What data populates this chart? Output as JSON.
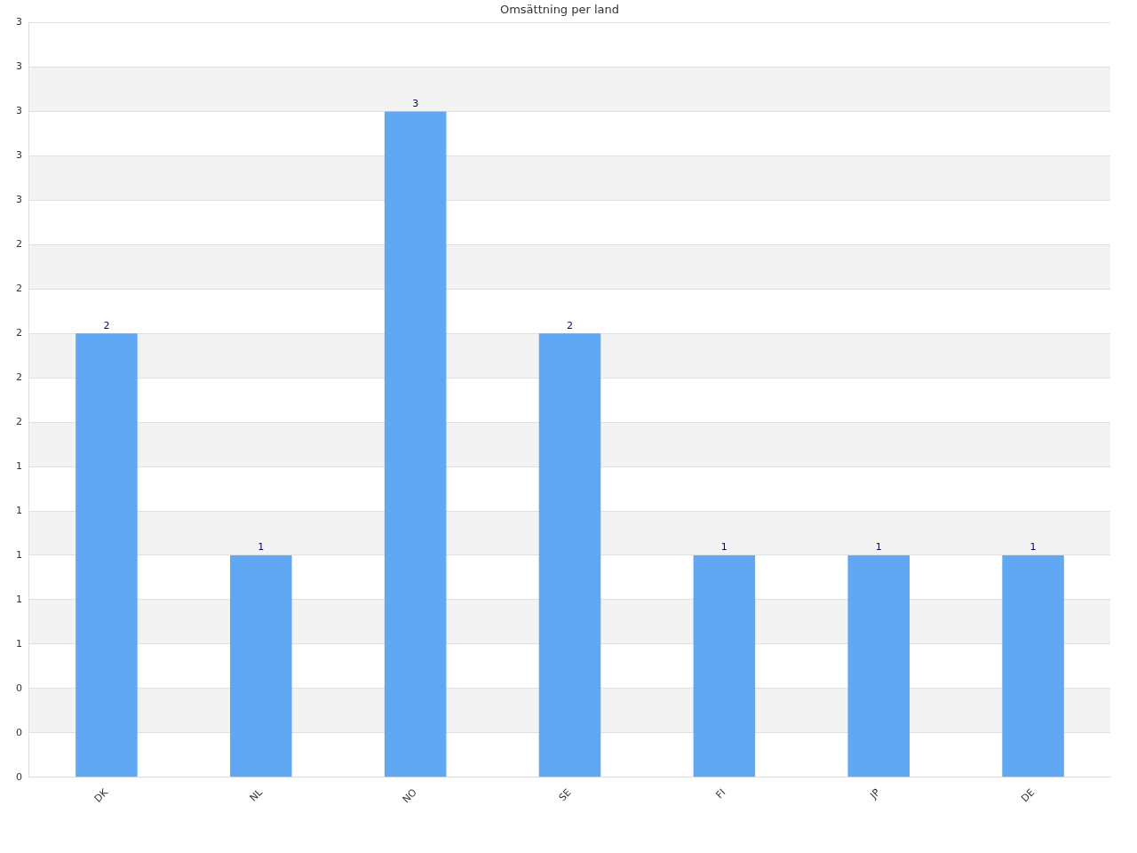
{
  "chart_data": {
    "type": "bar",
    "title": "Omsättning per land",
    "categories": [
      "DK",
      "NL",
      "NO",
      "SE",
      "FI",
      "JP",
      "DE"
    ],
    "values": [
      2,
      1,
      3,
      2,
      1,
      1,
      1
    ],
    "color": "#60a8f4",
    "ylim": [
      0,
      3.4
    ],
    "yticks": [
      {
        "value": 0,
        "label": "0"
      },
      {
        "value": 0.2,
        "label": "0"
      },
      {
        "value": 0.4,
        "label": "0"
      },
      {
        "value": 0.6,
        "label": "1"
      },
      {
        "value": 0.8,
        "label": "1"
      },
      {
        "value": 1,
        "label": "1"
      },
      {
        "value": 1.2,
        "label": "1"
      },
      {
        "value": 1.4,
        "label": "1"
      },
      {
        "value": 1.6,
        "label": "2"
      },
      {
        "value": 1.8,
        "label": "2"
      },
      {
        "value": 2,
        "label": "2"
      },
      {
        "value": 2.2,
        "label": "2"
      },
      {
        "value": 2.4,
        "label": "2"
      },
      {
        "value": 2.6,
        "label": "3"
      },
      {
        "value": 2.8,
        "label": "3"
      },
      {
        "value": 3,
        "label": "3"
      },
      {
        "value": 3.2,
        "label": "3"
      },
      {
        "value": 3.4,
        "label": "3"
      }
    ],
    "grid": "y",
    "data_labels": true,
    "legend": false
  }
}
